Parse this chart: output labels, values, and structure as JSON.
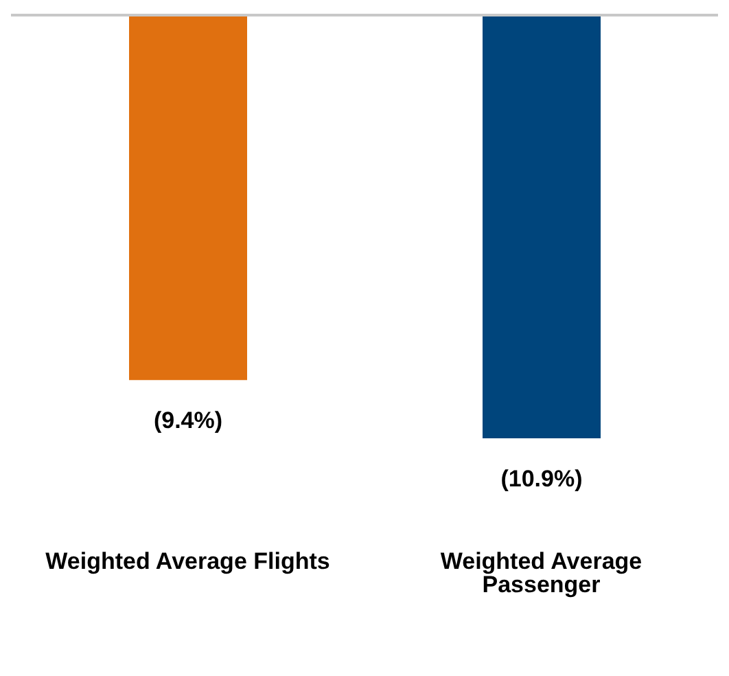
{
  "chart_data": {
    "type": "bar",
    "categories": [
      "Weighted Average Flights",
      "Weighted Average Passenger"
    ],
    "values": [
      -9.4,
      -10.9
    ],
    "colors": [
      "#e07010",
      "#00457c"
    ],
    "value_labels": [
      "(9.4%)",
      "(10.9%)"
    ],
    "grid": false,
    "legend": false
  }
}
